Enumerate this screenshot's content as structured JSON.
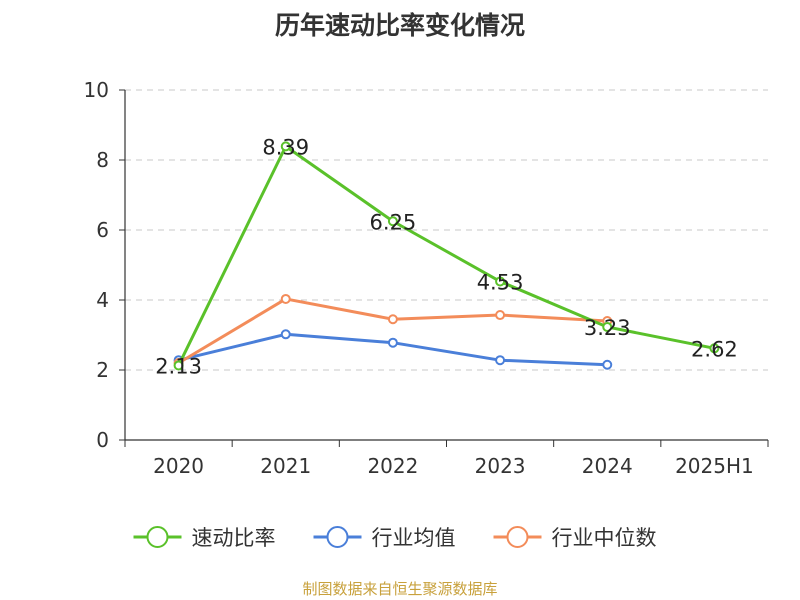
{
  "title": "历年速动比率变化情况",
  "footer": "制图数据来自恒生聚源数据库",
  "chart_data": {
    "type": "line",
    "title": "历年速动比率变化情况",
    "categories": [
      "2020",
      "2021",
      "2022",
      "2023",
      "2024",
      "2025H1"
    ],
    "ylim": [
      0,
      10
    ],
    "yticks": [
      0,
      2,
      4,
      6,
      8,
      10
    ],
    "grid": true,
    "legend_position": "bottom",
    "series": [
      {
        "name": "速动比率",
        "color": "#5ac12a",
        "values": [
          2.13,
          8.39,
          6.25,
          4.53,
          3.23,
          2.62
        ],
        "labels": [
          "2.13",
          "8.39",
          "6.25",
          "4.53",
          "3.23",
          "2.62"
        ]
      },
      {
        "name": "行业均值",
        "color": "#4a7fd9",
        "values": [
          2.28,
          3.02,
          2.78,
          2.28,
          2.15,
          null
        ]
      },
      {
        "name": "行业中位数",
        "color": "#f38c5a",
        "values": [
          2.2,
          4.03,
          3.45,
          3.57,
          3.4,
          null
        ]
      }
    ]
  }
}
